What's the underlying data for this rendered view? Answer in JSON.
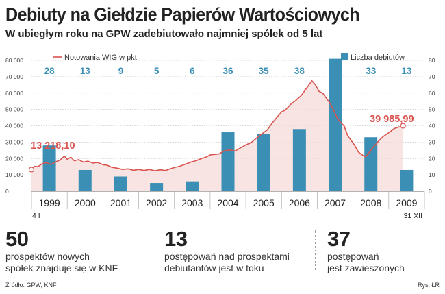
{
  "title": "Debiuty na Giełdzie Papierów Wartościowych",
  "subtitle": "W ubiegłym roku na GPW zadebiutowało najmniej spółek od 5 lat",
  "chart_data": {
    "type": "bar+line",
    "categories": [
      "1999",
      "2000",
      "2001",
      "2002",
      "2003",
      "2004",
      "2005",
      "2006",
      "2007",
      "2008",
      "2009"
    ],
    "bar_series": {
      "name": "Liczba debiutów",
      "values": [
        28,
        13,
        9,
        5,
        6,
        36,
        35,
        38,
        81,
        33,
        13
      ],
      "color": "#3b8fb5"
    },
    "line_series": {
      "name": "Notowania WIG w pkt",
      "color": "#d9534f",
      "points": [
        [
          0,
          13218
        ],
        [
          0.08,
          15200
        ],
        [
          0.18,
          15000
        ],
        [
          0.3,
          16800
        ],
        [
          0.42,
          17500
        ],
        [
          0.55,
          16300
        ],
        [
          0.68,
          18000
        ],
        [
          0.8,
          19000
        ],
        [
          0.92,
          21500
        ],
        [
          1.0,
          19500
        ],
        [
          1.1,
          20800
        ],
        [
          1.2,
          18600
        ],
        [
          1.32,
          19300
        ],
        [
          1.45,
          17800
        ],
        [
          1.58,
          18400
        ],
        [
          1.72,
          17200
        ],
        [
          1.85,
          17600
        ],
        [
          2.0,
          16200
        ],
        [
          2.12,
          15900
        ],
        [
          2.25,
          14600
        ],
        [
          2.4,
          14100
        ],
        [
          2.55,
          13300
        ],
        [
          2.7,
          13700
        ],
        [
          2.85,
          12800
        ],
        [
          3.0,
          13300
        ],
        [
          3.15,
          12700
        ],
        [
          3.3,
          13300
        ],
        [
          3.45,
          12500
        ],
        [
          3.6,
          13100
        ],
        [
          3.75,
          12700
        ],
        [
          3.88,
          13700
        ],
        [
          4.0,
          14500
        ],
        [
          4.15,
          15300
        ],
        [
          4.3,
          16400
        ],
        [
          4.45,
          17700
        ],
        [
          4.6,
          18600
        ],
        [
          4.75,
          19900
        ],
        [
          4.9,
          21000
        ],
        [
          5.0,
          22200
        ],
        [
          5.12,
          22500
        ],
        [
          5.25,
          22800
        ],
        [
          5.4,
          24700
        ],
        [
          5.55,
          25200
        ],
        [
          5.7,
          24600
        ],
        [
          5.85,
          26500
        ],
        [
          6.0,
          28300
        ],
        [
          6.15,
          29700
        ],
        [
          6.3,
          32500
        ],
        [
          6.45,
          35000
        ],
        [
          6.6,
          37500
        ],
        [
          6.75,
          42000
        ],
        [
          6.9,
          46000
        ],
        [
          7.0,
          48500
        ],
        [
          7.1,
          49500
        ],
        [
          7.25,
          53000
        ],
        [
          7.4,
          55500
        ],
        [
          7.55,
          58500
        ],
        [
          7.7,
          63000
        ],
        [
          7.85,
          67500
        ],
        [
          7.95,
          65000
        ],
        [
          8.05,
          61000
        ],
        [
          8.15,
          60000
        ],
        [
          8.25,
          57000
        ],
        [
          8.35,
          54000
        ],
        [
          8.45,
          50000
        ],
        [
          8.55,
          45000
        ],
        [
          8.65,
          42000
        ],
        [
          8.75,
          40000
        ],
        [
          8.85,
          34000
        ],
        [
          8.95,
          31000
        ],
        [
          9.05,
          28000
        ],
        [
          9.15,
          24000
        ],
        [
          9.25,
          22300
        ],
        [
          9.35,
          21000
        ],
        [
          9.45,
          23500
        ],
        [
          9.55,
          26500
        ],
        [
          9.65,
          29000
        ],
        [
          9.75,
          31500
        ],
        [
          9.85,
          33500
        ],
        [
          9.95,
          35000
        ],
        [
          10.05,
          36500
        ],
        [
          10.15,
          38300
        ],
        [
          10.25,
          39000
        ],
        [
          10.4,
          39986
        ]
      ],
      "start_label": "13 218,10",
      "end_label": "39 985,99",
      "start_date": "4 I",
      "end_date": "31 XII"
    },
    "left_axis": {
      "ticks": [
        "0",
        "10 000",
        "20 000",
        "30 000",
        "40 000",
        "50 000",
        "60 000",
        "70 000",
        "80 000"
      ],
      "range": [
        0,
        80000
      ]
    },
    "right_axis": {
      "ticks": [
        "0",
        "10",
        "20",
        "30",
        "40",
        "50",
        "60",
        "70",
        "80"
      ],
      "range": [
        0,
        80
      ]
    },
    "legend": {
      "line_label": "Notowania WIG w pkt",
      "bar_label": "Liczba debiutów"
    }
  },
  "stats": [
    {
      "number": "50",
      "line1": "prospektów nowych",
      "line2": "spółek znajduje się w KNF"
    },
    {
      "number": "13",
      "line1": "postępowań nad prospektami",
      "line2": "debiutantów jest w toku"
    },
    {
      "number": "37",
      "line1": "postępowań",
      "line2": "jest zawieszonych"
    }
  ],
  "source": "Źródło: GPW, KNF",
  "credit": "Rys. ŁR"
}
